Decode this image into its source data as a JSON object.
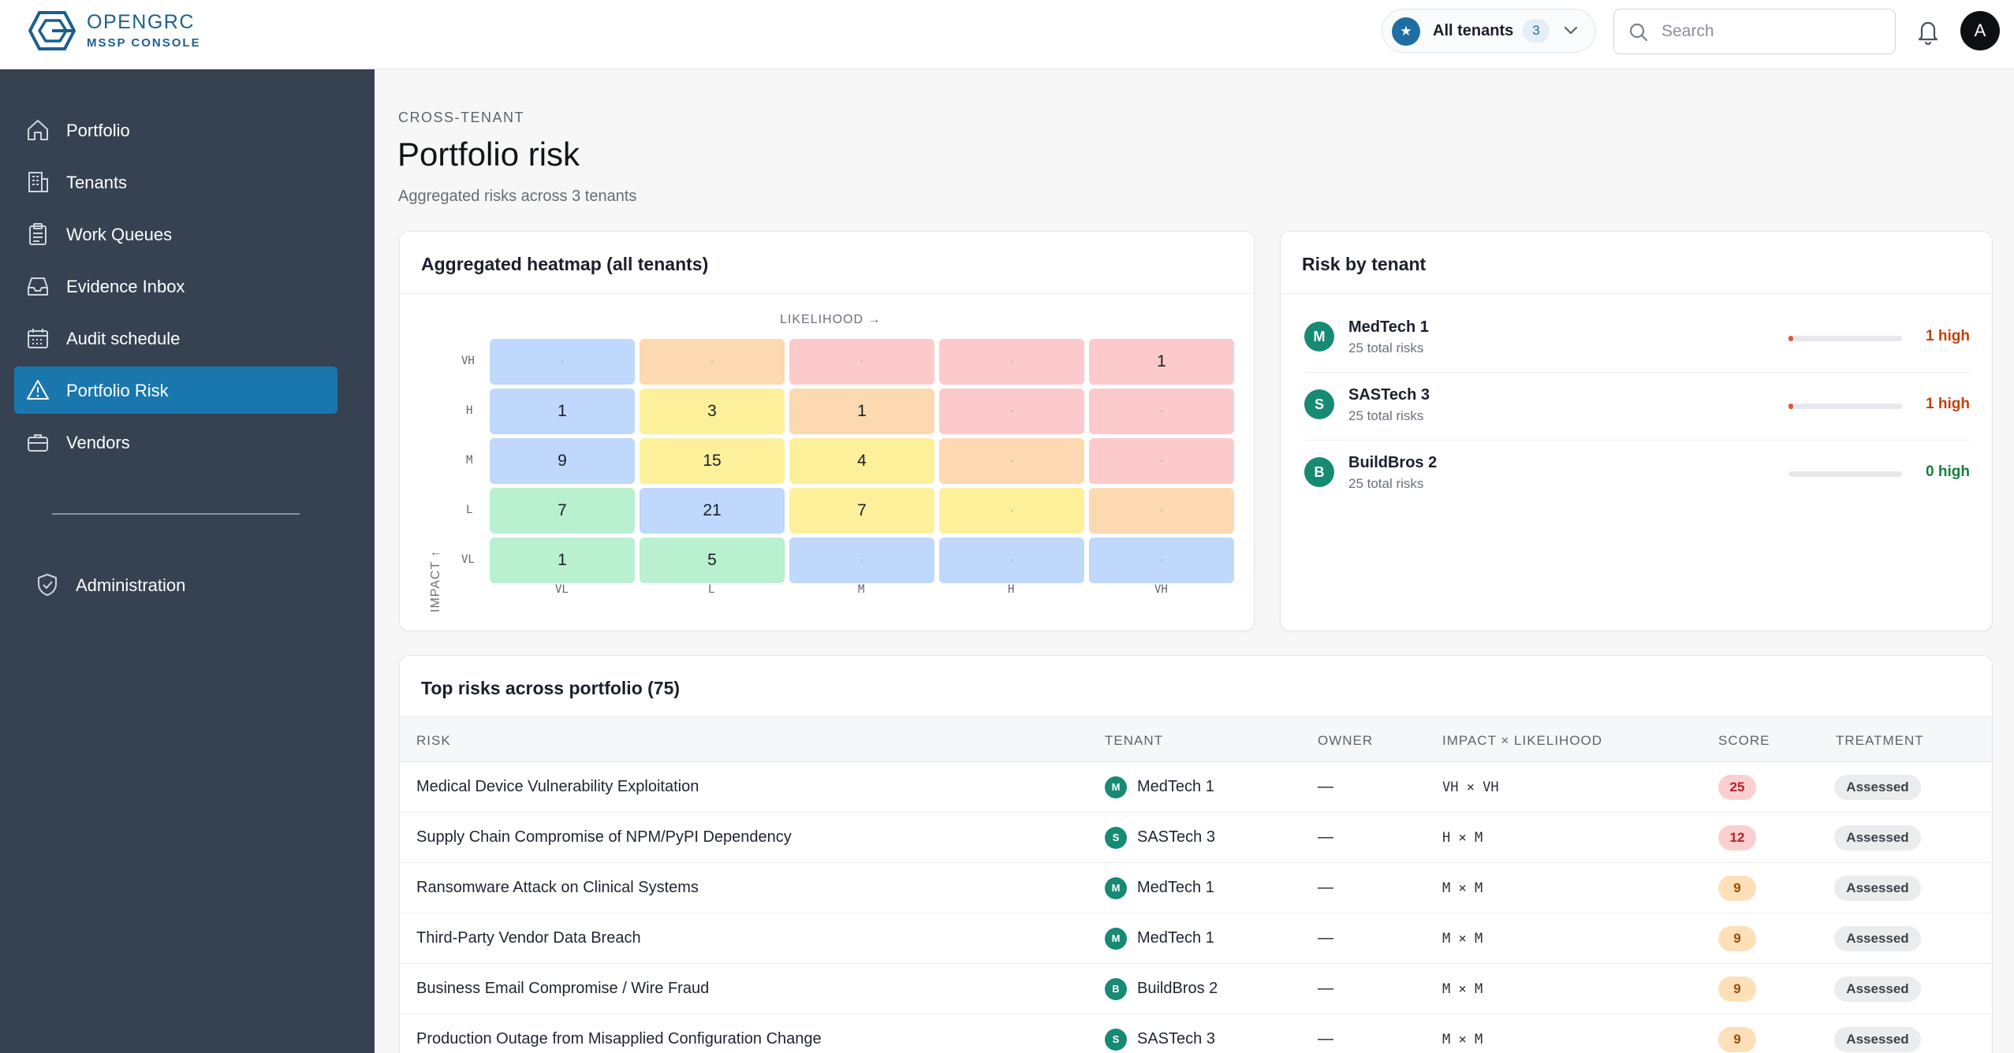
{
  "brand": {
    "name": "OPENGRC",
    "subtitle": "MSSP CONSOLE"
  },
  "header": {
    "tenant_switch": {
      "label": "All tenants",
      "count": "3"
    },
    "search": {
      "placeholder": "Search",
      "value": ""
    },
    "avatar_initial": "A"
  },
  "sidebar": {
    "items": [
      {
        "label": "Portfolio",
        "icon": "home-icon"
      },
      {
        "label": "Tenants",
        "icon": "building-icon"
      },
      {
        "label": "Work Queues",
        "icon": "clipboard-icon"
      },
      {
        "label": "Evidence Inbox",
        "icon": "inbox-icon"
      },
      {
        "label": "Audit schedule",
        "icon": "calendar-icon"
      },
      {
        "label": "Portfolio Risk",
        "icon": "warning-icon",
        "active": true
      },
      {
        "label": "Vendors",
        "icon": "briefcase-icon"
      }
    ],
    "admin": {
      "label": "Administration",
      "icon": "shield-check-icon"
    }
  },
  "page": {
    "eyebrow": "CROSS-TENANT",
    "title": "Portfolio risk",
    "subtitle": "Aggregated risks across 3 tenants"
  },
  "heatmap": {
    "title": "Aggregated heatmap (all tenants)",
    "likelihood_label": "LIKELIHOOD →",
    "impact_label": "IMPACT ↑",
    "rows": [
      "VH",
      "H",
      "M",
      "L",
      "VL"
    ],
    "cols": [
      "VL",
      "L",
      "M",
      "H",
      "VH"
    ],
    "cells": [
      [
        "·",
        "·",
        "·",
        "·",
        "1"
      ],
      [
        "1",
        "3",
        "1",
        "·",
        "·"
      ],
      [
        "9",
        "15",
        "4",
        "·",
        "·"
      ],
      [
        "7",
        "21",
        "7",
        "·",
        "·"
      ],
      [
        "1",
        "5",
        "·",
        "·",
        "·"
      ]
    ],
    "colors": [
      [
        "#bfd8fb",
        "#fcd9b1",
        "#fccaca",
        "#fccaca",
        "#fccaca"
      ],
      [
        "#bfd8fb",
        "#fdf09a",
        "#fcd9b1",
        "#fccaca",
        "#fccaca"
      ],
      [
        "#bfd8fb",
        "#fdf09a",
        "#fdf09a",
        "#fcd9b1",
        "#fccaca"
      ],
      [
        "#b9f0d0",
        "#bfd8fb",
        "#fdf09a",
        "#fdf09a",
        "#fcd9b1"
      ],
      [
        "#b9f0d0",
        "#b9f0d0",
        "#bfd8fb",
        "#bfd8fb",
        "#bfd8fb"
      ]
    ]
  },
  "risk_by_tenant": {
    "title": "Risk by tenant",
    "tenants": [
      {
        "initial": "M",
        "name": "MedTech 1",
        "total": "25 total risks",
        "high": "1 high",
        "high_fraction": 0.04,
        "high_color": "#c2410c"
      },
      {
        "initial": "S",
        "name": "SASTech 3",
        "total": "25 total risks",
        "high": "1 high",
        "high_fraction": 0.04,
        "high_color": "#c2410c"
      },
      {
        "initial": "B",
        "name": "BuildBros 2",
        "total": "25 total risks",
        "high": "0 high",
        "high_fraction": 0.0,
        "high_color": "#15803d"
      }
    ]
  },
  "top_risks": {
    "title": "Top risks across portfolio (75)",
    "columns": [
      "RISK",
      "TENANT",
      "OWNER",
      "IMPACT × LIKELIHOOD",
      "SCORE",
      "TREATMENT"
    ],
    "rows": [
      {
        "risk": "Medical Device Vulnerability Exploitation",
        "tenant_initial": "M",
        "tenant": "MedTech 1",
        "owner": "—",
        "ixl": "VH × VH",
        "score": "25",
        "score_bg": "#fbcfd0",
        "score_fg": "#b4232b",
        "treatment": "Assessed"
      },
      {
        "risk": "Supply Chain Compromise of NPM/PyPI Dependency",
        "tenant_initial": "S",
        "tenant": "SASTech 3",
        "owner": "—",
        "ixl": "H × M",
        "score": "12",
        "score_bg": "#fbcfd0",
        "score_fg": "#b4232b",
        "treatment": "Assessed"
      },
      {
        "risk": "Ransomware Attack on Clinical Systems",
        "tenant_initial": "M",
        "tenant": "MedTech 1",
        "owner": "—",
        "ixl": "M × M",
        "score": "9",
        "score_bg": "#fde0b8",
        "score_fg": "#9a4a0c",
        "treatment": "Assessed"
      },
      {
        "risk": "Third-Party Vendor Data Breach",
        "tenant_initial": "M",
        "tenant": "MedTech 1",
        "owner": "—",
        "ixl": "M × M",
        "score": "9",
        "score_bg": "#fde0b8",
        "score_fg": "#9a4a0c",
        "treatment": "Assessed"
      },
      {
        "risk": "Business Email Compromise / Wire Fraud",
        "tenant_initial": "B",
        "tenant": "BuildBros 2",
        "owner": "—",
        "ixl": "M × M",
        "score": "9",
        "score_bg": "#fde0b8",
        "score_fg": "#9a4a0c",
        "treatment": "Assessed"
      },
      {
        "risk": "Production Outage from Misapplied Configuration Change",
        "tenant_initial": "S",
        "tenant": "SASTech 3",
        "owner": "—",
        "ixl": "M × M",
        "score": "9",
        "score_bg": "#fde0b8",
        "score_fg": "#9a4a0c",
        "treatment": "Assessed"
      }
    ]
  }
}
